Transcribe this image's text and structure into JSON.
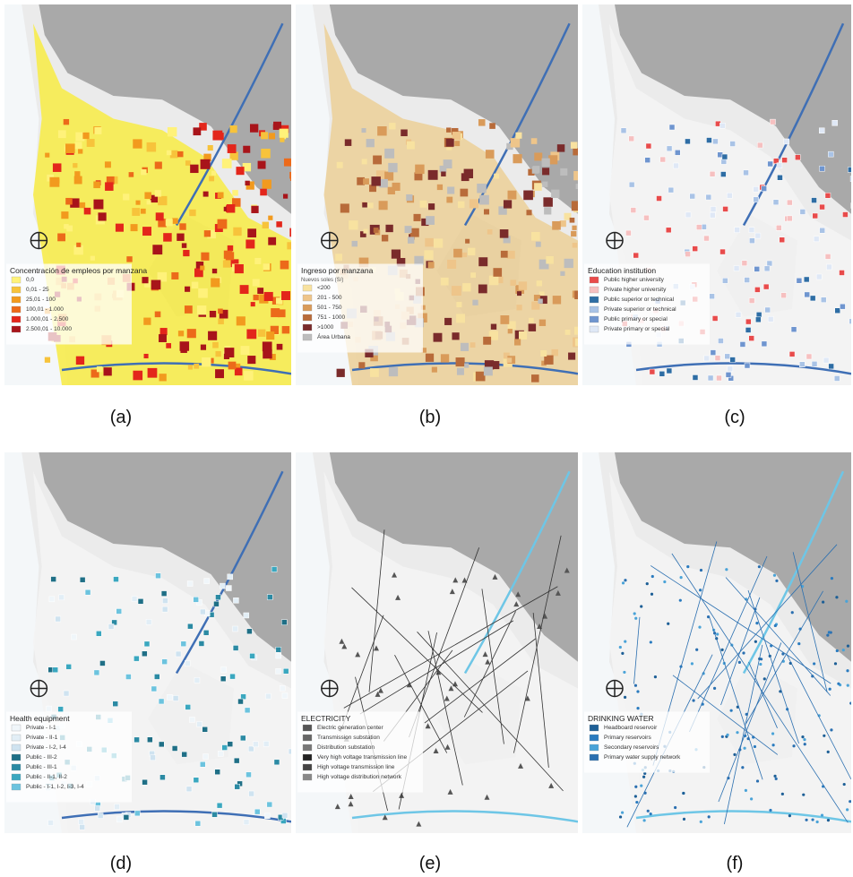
{
  "panels": [
    {
      "caption": "(a)",
      "legend": {
        "title": "Concentración de empleos por manzana",
        "items": [
          {
            "label": "0,0",
            "color": "#fff27a"
          },
          {
            "label": "0,01 - 25",
            "color": "#f7c33b"
          },
          {
            "label": "25,01 - 100",
            "color": "#f29a1e"
          },
          {
            "label": "100,01 - 1.000",
            "color": "#ec6a1a"
          },
          {
            "label": "1.000,01 - 2.500",
            "color": "#e3261b"
          },
          {
            "label": "2.500,01 - 10.000",
            "color": "#a8141a"
          }
        ]
      }
    },
    {
      "caption": "(b)",
      "legend": {
        "title": "Ingreso por manzana",
        "subtitle": "Nuevos soles (S/)",
        "items": [
          {
            "label": "<200",
            "color": "#f8e2a0"
          },
          {
            "label": "201 - 500",
            "color": "#eec58a"
          },
          {
            "label": "501 - 750",
            "color": "#d99b5a"
          },
          {
            "label": "751 - 1000",
            "color": "#b86b3a"
          },
          {
            "label": ">1000",
            "color": "#7a2b2b"
          },
          {
            "label": "Área Urbana",
            "color": "#bdbdbd"
          }
        ]
      }
    },
    {
      "caption": "(c)",
      "legend": {
        "title": "Education institution",
        "items": [
          {
            "label": "Public higher university",
            "color": "#e84b4b"
          },
          {
            "label": "Private higher university",
            "color": "#f6c0c0"
          },
          {
            "label": "Public superior or technical",
            "color": "#2e6da4"
          },
          {
            "label": "Private superior or technical",
            "color": "#a9c3e6"
          },
          {
            "label": "Public primary or special",
            "color": "#6f95cf"
          },
          {
            "label": "Private primary or special",
            "color": "#dfe8f6"
          }
        ]
      }
    },
    {
      "caption": "(d)",
      "legend": {
        "title": "Health equipment",
        "items": [
          {
            "label": "Private - I-1",
            "color": "#f0f6fa"
          },
          {
            "label": "Private - II-1",
            "color": "#e2eef6"
          },
          {
            "label": "Private - I-2, I-4",
            "color": "#cfe3f0"
          },
          {
            "label": "Public - III-2",
            "color": "#1f6f86"
          },
          {
            "label": "Public - III-1",
            "color": "#2b8aa3"
          },
          {
            "label": "Public - II-1, II-2",
            "color": "#3aa7bf"
          },
          {
            "label": "Public - I-1, I-2, I-3, I-4",
            "color": "#6cc3de"
          }
        ]
      }
    },
    {
      "caption": "(e)",
      "legend": {
        "title": "ELECTRICITY",
        "items": [
          {
            "label": "Electric generation center",
            "color": "#555555"
          },
          {
            "label": "Transmission substation",
            "color": "#666666"
          },
          {
            "label": "Distribution substation",
            "color": "#777777"
          },
          {
            "label": "Very high voltage transmission line",
            "color": "#222222"
          },
          {
            "label": "High voltage transmission line",
            "color": "#444444"
          },
          {
            "label": "High voltage distribution network",
            "color": "#888888"
          }
        ]
      }
    },
    {
      "caption": "(f)",
      "legend": {
        "title": "DRINKING WATER",
        "items": [
          {
            "label": "Headboard reservoir",
            "color": "#1d5f96"
          },
          {
            "label": "Primary reservoirs",
            "color": "#2a7bbf"
          },
          {
            "label": "Secondary reservoirs",
            "color": "#4aa3d8"
          },
          {
            "label": "Primary water supply network",
            "color": "#2a6fb0"
          }
        ]
      }
    }
  ]
}
